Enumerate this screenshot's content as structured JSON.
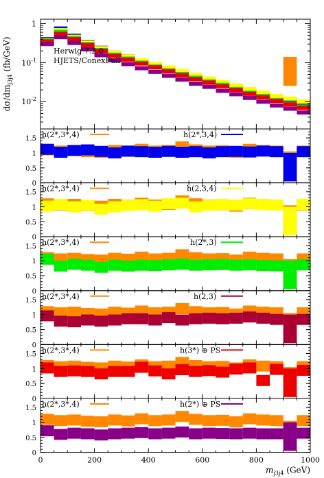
{
  "chart_data": {
    "type": "step-histogram-with-ratio-panels",
    "x_axis": {
      "label": "m_{j3j4}",
      "unit": "(GeV)",
      "range": [
        0,
        1000
      ],
      "ticks": [
        0,
        200,
        400,
        600,
        800,
        1000
      ],
      "tick_labels": [
        "0",
        "200",
        "400",
        "600",
        "800",
        "1000"
      ]
    },
    "bins": [
      0,
      50,
      100,
      150,
      200,
      250,
      300,
      350,
      400,
      450,
      500,
      550,
      600,
      650,
      700,
      750,
      800,
      850,
      900,
      950,
      1000
    ],
    "main_plot": {
      "ylabel_parts": [
        "dσ/dm",
        "(fb/GeV)"
      ],
      "yscale": "log",
      "ylim": [
        0.002,
        1.3
      ],
      "ticks": [
        1,
        0.1,
        0.01
      ],
      "tick_labels": [
        "1",
        "10",
        "10"
      ],
      "tick_exponents": [
        "",
        "-1",
        "-2"
      ],
      "labels": [
        "Herwig 7.2.0",
        "HJETS/ConexFull"
      ],
      "series": [
        {
          "name": "h(2*,3*,4)",
          "color": "#ff8800",
          "values": [
            0.36,
            0.6,
            0.44,
            0.31,
            0.22,
            0.17,
            0.135,
            0.105,
            0.083,
            0.066,
            0.055,
            0.042,
            0.034,
            0.028,
            0.022,
            0.018,
            0.014,
            0.012,
            0.06,
            0.008
          ]
        },
        {
          "name": "h(2*,3,4)",
          "color": "#0000ee",
          "values": [
            0.4,
            0.75,
            0.49,
            0.34,
            0.24,
            0.18,
            0.145,
            0.11,
            0.088,
            0.071,
            0.056,
            0.045,
            0.036,
            0.03,
            0.024,
            0.019,
            0.015,
            0.013,
            0.011,
            0.009
          ]
        },
        {
          "name": "h(2,3,4)",
          "color": "#ffff00",
          "values": [
            0.38,
            0.68,
            0.46,
            0.33,
            0.235,
            0.18,
            0.145,
            0.115,
            0.093,
            0.075,
            0.06,
            0.048,
            0.039,
            0.032,
            0.026,
            0.021,
            0.017,
            0.014,
            0.012,
            0.01
          ]
        },
        {
          "name": "h(2*,3)",
          "color": "#00ee00",
          "values": [
            0.37,
            0.62,
            0.43,
            0.3,
            0.21,
            0.16,
            0.127,
            0.1,
            0.08,
            0.064,
            0.051,
            0.041,
            0.033,
            0.027,
            0.021,
            0.017,
            0.014,
            0.011,
            0.009,
            0.0075
          ]
        },
        {
          "name": "h(2,3)",
          "color": "#ee0000",
          "values": [
            0.35,
            0.55,
            0.4,
            0.28,
            0.2,
            0.15,
            0.12,
            0.095,
            0.076,
            0.06,
            0.048,
            0.038,
            0.031,
            0.025,
            0.02,
            0.016,
            0.013,
            0.0105,
            0.0085,
            0.007
          ]
        },
        {
          "name": "h(2*) ⊕ PS",
          "color": "#880088",
          "values": [
            0.3,
            0.45,
            0.32,
            0.22,
            0.155,
            0.115,
            0.092,
            0.072,
            0.058,
            0.046,
            0.037,
            0.029,
            0.024,
            0.019,
            0.0155,
            0.0125,
            0.01,
            0.008,
            0.0066,
            0.0053
          ]
        }
      ]
    },
    "ratio_panels": [
      {
        "ref_label": "h(2*,3*,4)",
        "label": "h(2*,3,4)",
        "color": "#0000ee",
        "ylim": [
          0,
          1.8
        ],
        "values": [
          1.12,
          1.02,
          1.08,
          1.1,
          1.05,
          1.0,
          1.06,
          1.04,
          1.02,
          1.05,
          1.02,
          1.04,
          1.0,
          1.04,
          1.05,
          1.03,
          1.06,
          1.04,
          0.3,
          1.04
        ]
      },
      {
        "ref_label": "h(2*,3*,4)",
        "label": "h(2,3,4)",
        "color": "#ffff00",
        "ylim": [
          0,
          1.8
        ],
        "values": [
          1.02,
          1.08,
          1.0,
          1.05,
          0.92,
          1.0,
          1.04,
          1.07,
          1.02,
          1.1,
          1.12,
          1.0,
          1.05,
          1.08,
          1.06,
          1.1,
          1.08,
          1.06,
          0.3,
          1.08
        ]
      },
      {
        "ref_label": "h(2*,3*,4)",
        "label": "h(2*,3)",
        "color": "#00ee00",
        "ylim": [
          0,
          1.8
        ],
        "values": [
          1.05,
          0.82,
          0.88,
          0.85,
          0.78,
          0.85,
          0.82,
          0.85,
          0.84,
          0.86,
          0.88,
          0.85,
          0.86,
          0.87,
          0.85,
          0.86,
          0.84,
          0.83,
          0.22,
          0.86
        ]
      },
      {
        "ref_label": "h(2*,3*,4)",
        "label": "h(2,3)",
        "color": "#aa0033",
        "ylim": [
          0,
          1.8
        ],
        "values": [
          0.96,
          0.78,
          0.76,
          0.82,
          0.78,
          0.82,
          0.86,
          0.86,
          0.82,
          0.9,
          0.82,
          0.86,
          0.88,
          0.86,
          0.88,
          0.92,
          0.88,
          0.84,
          0.18,
          0.84
        ]
      },
      {
        "ref_label": "h(2*,3*,4)",
        "label": "h(3*) ⊕ PS",
        "color": "#ee0000",
        "ylim": [
          0,
          1.8
        ],
        "values": [
          1.02,
          0.9,
          0.92,
          0.9,
          0.82,
          0.9,
          0.9,
          1.04,
          0.92,
          0.82,
          0.96,
          0.9,
          0.93,
          0.88,
          0.98,
          1.02,
          0.6,
          0.97,
          0.18,
          0.94
        ]
      },
      {
        "ref_label": "h(2*,3*,4)",
        "label": "h(2*) ⊕ PS",
        "color": "#880088",
        "ylim": [
          0,
          1.8
        ],
        "values": [
          0.72,
          0.6,
          0.64,
          0.62,
          0.58,
          0.62,
          0.64,
          0.66,
          0.62,
          0.64,
          0.68,
          0.62,
          0.64,
          0.63,
          0.62,
          0.64,
          0.62,
          0.62,
          0.18,
          0.64
        ]
      }
    ],
    "reference_ratio": {
      "color": "#ff8800",
      "values": [
        1.1,
        1.06,
        1.08,
        1.04,
        1.02,
        1.08,
        1.05,
        1.12,
        1.06,
        1.08,
        1.2,
        1.1,
        1.06,
        1.07,
        1.02,
        1.12,
        1.08,
        1.06,
        0.5,
        1.06
      ]
    }
  }
}
